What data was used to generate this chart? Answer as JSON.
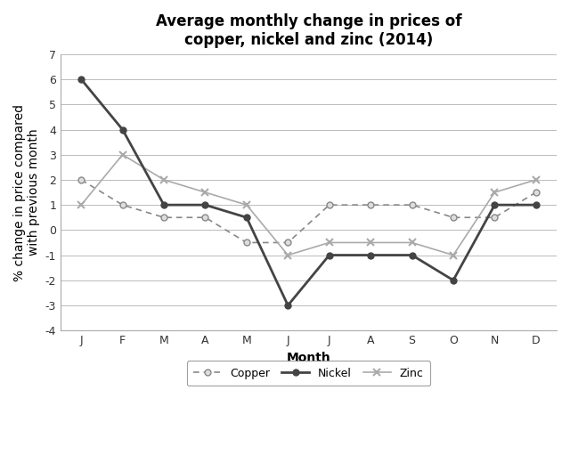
{
  "title": "Average monthly change in prices of\ncopper, nickel and zinc (2014)",
  "xlabel": "Month",
  "ylabel": "% change in price compared\nwith previous month",
  "months": [
    "J",
    "F",
    "M",
    "A",
    "M",
    "J",
    "J",
    "A",
    "S",
    "O",
    "N",
    "D"
  ],
  "copper": [
    2,
    1,
    0.5,
    0.5,
    -0.5,
    -0.5,
    1,
    1,
    1,
    0.5,
    0.5,
    1.5
  ],
  "nickel": [
    6,
    4,
    1,
    1,
    0.5,
    -3,
    -1,
    -1,
    -1,
    -2,
    1,
    1
  ],
  "zinc": [
    1,
    3,
    2,
    1.5,
    1,
    -1,
    -0.5,
    -0.5,
    -0.5,
    -1,
    1.5,
    2
  ],
  "ylim": [
    -4,
    7
  ],
  "yticks": [
    -4,
    -3,
    -2,
    -1,
    0,
    1,
    2,
    3,
    4,
    5,
    6,
    7
  ],
  "copper_color": "#888888",
  "nickel_color": "#444444",
  "zinc_color": "#aaaaaa",
  "title_fontsize": 12,
  "label_fontsize": 10,
  "tick_fontsize": 9,
  "legend_fontsize": 9
}
